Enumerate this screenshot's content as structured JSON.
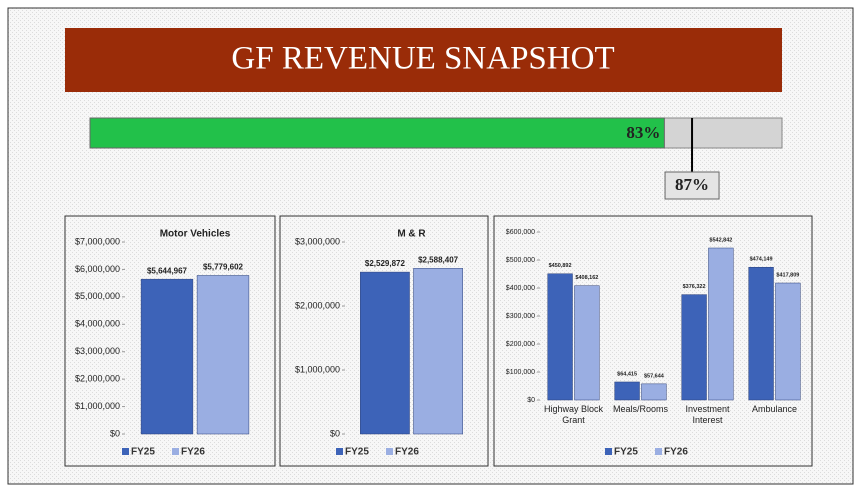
{
  "title": "GF REVENUE SNAPSHOT",
  "progress": {
    "value": {
      "value": 83,
      "label": "83%"
    },
    "target": {
      "value": 87,
      "label": "87%"
    },
    "xlim": [
      0,
      100
    ],
    "color": "#22c14a"
  },
  "chart_data": [
    {
      "type": "bar",
      "title": "Motor Vehicles",
      "categories": [
        null
      ],
      "series": [
        {
          "name": "FY25",
          "color": "#3d63b8",
          "values": [
            5644967
          ],
          "value_labels": [
            "$5,644,967"
          ]
        },
        {
          "name": "FY26",
          "color": "#9aaee2",
          "values": [
            5779602
          ],
          "value_labels": [
            "$5,779,602"
          ]
        }
      ],
      "ylim": [
        0,
        7000000
      ],
      "yticks": [
        {
          "value": 0,
          "label": "$0"
        },
        {
          "value": 1000000,
          "label": "$1,000,000"
        },
        {
          "value": 2000000,
          "label": "$2,000,000"
        },
        {
          "value": 3000000,
          "label": "$3,000,000"
        },
        {
          "value": 4000000,
          "label": "$4,000,000"
        },
        {
          "value": 5000000,
          "label": "$5,000,000"
        },
        {
          "value": 6000000,
          "label": "$6,000,000"
        },
        {
          "value": 7000000,
          "label": "$7,000,000"
        }
      ]
    },
    {
      "type": "bar",
      "title": "M & R",
      "categories": [
        null
      ],
      "series": [
        {
          "name": "FY25",
          "color": "#3d63b8",
          "values": [
            2529872
          ],
          "value_labels": [
            "$2,529,872"
          ]
        },
        {
          "name": "FY26",
          "color": "#9aaee2",
          "values": [
            2588407
          ],
          "value_labels": [
            "$2,588,407"
          ]
        }
      ],
      "ylim": [
        0,
        3000000
      ],
      "yticks": [
        {
          "value": 0,
          "label": "$0"
        },
        {
          "value": 1000000,
          "label": "$1,000,000"
        },
        {
          "value": 2000000,
          "label": "$2,000,000"
        },
        {
          "value": 3000000,
          "label": "$3,000,000"
        }
      ]
    },
    {
      "type": "bar",
      "categories": [
        "Highway Block Grant",
        "Meals/Rooms",
        "Investment Interest",
        "Ambulance"
      ],
      "series": [
        {
          "name": "FY25",
          "color": "#3d63b8",
          "values": [
            450892,
            64415,
            376322,
            474149
          ],
          "value_labels": [
            "$450,892",
            "$64,415",
            "$376,322",
            "$474,149"
          ]
        },
        {
          "name": "FY26",
          "color": "#9aaee2",
          "values": [
            408162,
            57644,
            542842,
            417809
          ],
          "value_labels": [
            "$408,162",
            "$57,644",
            "$542,842",
            "$417,809"
          ]
        }
      ],
      "ylim": [
        0,
        600000
      ],
      "yticks": [
        {
          "value": 0,
          "label": "$0"
        },
        {
          "value": 100000,
          "label": "$100,000"
        },
        {
          "value": 200000,
          "label": "$200,000"
        },
        {
          "value": 300000,
          "label": "$300,000"
        },
        {
          "value": 400000,
          "label": "$400,000"
        },
        {
          "value": 500000,
          "label": "$500,000"
        },
        {
          "value": 600000,
          "label": "$600,000"
        }
      ]
    }
  ]
}
